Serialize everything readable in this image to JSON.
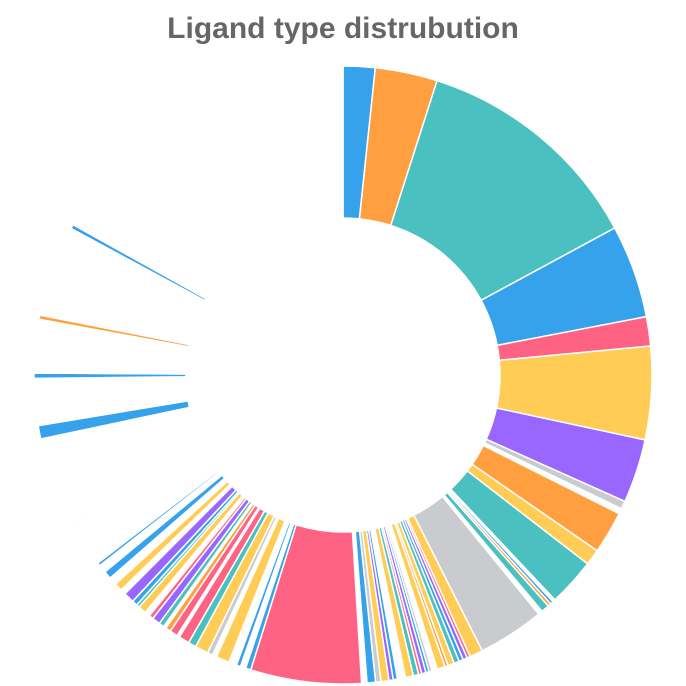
{
  "chart_data": {
    "type": "doughnut",
    "title": "Ligand type distrubution",
    "values": [
      6,
      11.7,
      43.8,
      17.5,
      5.5,
      17.5,
      12,
      1.5,
      1,
      8,
      3,
      9,
      0.5,
      0.6,
      0.6,
      1.5,
      0.8,
      12.5,
      2.5,
      0.6,
      0.8,
      0.8,
      1,
      1.2,
      0.6,
      1.5,
      1,
      0.6,
      0.6,
      0.8,
      0.6,
      1,
      1.5,
      1.5,
      0.8,
      0.8,
      1.5,
      1,
      1.6,
      1,
      20.8,
      1,
      1,
      0.8,
      1.5,
      2.5,
      0.8,
      1,
      2.5,
      1.5,
      2,
      0.5,
      1.5,
      1,
      0.5,
      1,
      1.5,
      0.8,
      1,
      1.5,
      0.6,
      1,
      2,
      1,
      1.5,
      1.5,
      1.5,
      1.5,
      0.6,
      1.4,
      7,
      0.3,
      6,
      0.2,
      10.6,
      2.5,
      8.8,
      1,
      10,
      0.8,
      1,
      0.3,
      15.8,
      0.8,
      60.8
    ],
    "colors": [
      "#36a2eb",
      "#ff9f40",
      "#4bc0c0",
      "#36a2eb",
      "#ff6384",
      "#ffcd56",
      "#9966ff",
      "#c9cbcf",
      "#ffffff",
      "#ff9f40",
      "#ffcd56",
      "#4bc0c0",
      "#ffffff",
      "#36a2eb",
      "#ff9f40",
      "#4bc0c0",
      "#ffffff",
      "#c9cbcf",
      "#ffcd56",
      "#ff6384",
      "#9966ff",
      "#36a2eb",
      "#4bc0c0",
      "#ffcd56",
      "#ff9f40",
      "#ffcd56",
      "#ffffff",
      "#c9cbcf",
      "#36a2eb",
      "#9966ff",
      "#ff6384",
      "#4bc0c0",
      "#ffcd56",
      "#ffffff",
      "#36a2eb",
      "#9966ff",
      "#ffcd56",
      "#c9cbcf",
      "#36a2eb",
      "#ffffff",
      "#ff6384",
      "#36a2eb",
      "#ffffff",
      "#36a2eb",
      "#ffffff",
      "#ffcd56",
      "#ffffff",
      "#c9cbcf",
      "#ffcd56",
      "#4bc0c0",
      "#ff6384",
      "#ffffff",
      "#ff6384",
      "#ff9f40",
      "#ffffff",
      "#4bc0c0",
      "#9966ff",
      "#ff6384",
      "#ffffff",
      "#ffcd56",
      "#4bc0c0",
      "#36a2eb",
      "#9966ff",
      "#ffffff",
      "#ffcd56",
      "#ffffff",
      "#36a2eb",
      "#ffffff",
      "#36a2eb",
      "#ffffff",
      "#ffffff",
      "#ffcd56",
      "#ffffff",
      "#c9cbcf",
      "#ffffff",
      "#36a2eb",
      "#ffffff",
      "#36a2eb",
      "#ffffff",
      "#ff9f40",
      "#ffffff",
      "#ffcd56",
      "#ffffff",
      "#36a2eb",
      "#ffffff"
    ]
  }
}
